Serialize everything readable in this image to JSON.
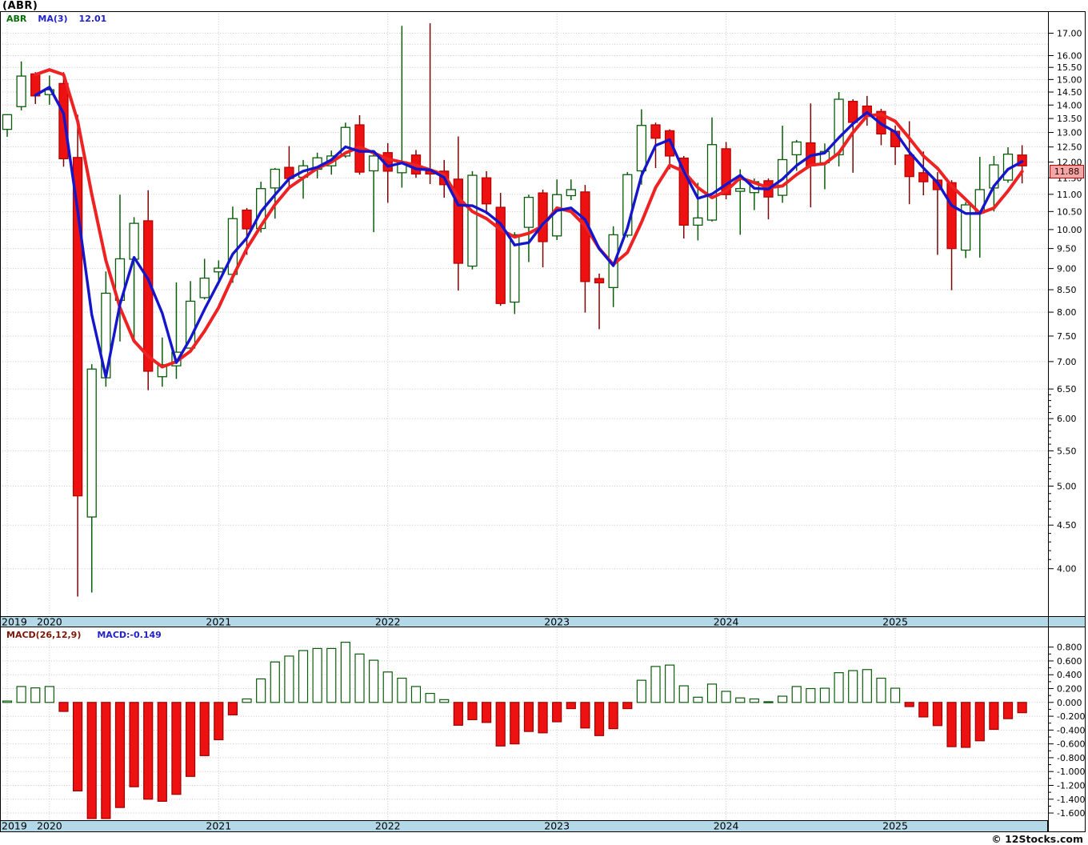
{
  "header": {
    "title": "(ABR)"
  },
  "legend": {
    "symbol": "ABR",
    "ma_label": "MA(3)",
    "ma_value": "12.01"
  },
  "macd_legend": {
    "label": "MACD(26,12,9)",
    "value": "MACD:-0.149"
  },
  "price_tag": {
    "value": "11.88"
  },
  "footer": {
    "copyright": "© 12Stocks.com"
  },
  "colors": {
    "up_body": "#ffffff",
    "up_outline": "#0a5c0a",
    "down_body": "#ee1111",
    "down_outline": "#bb0000",
    "down_wick": "#7a0606",
    "ma_blue": "#1515cc",
    "ma_red": "#ee2222",
    "band": "#b3d9e8",
    "grid": "#c6c6c6",
    "tag_bg": "#f3a6a6",
    "tag_border": "#c00000",
    "macd_pos_fill": "#ffffff",
    "macd_pos_outline": "#0a5c0a",
    "macd_neg_fill": "#ee1111"
  },
  "chart_data": {
    "type": "candlestick_with_macd",
    "title": "(ABR)",
    "interval": "monthly",
    "start_month": "2019-10",
    "last_close": 11.88,
    "ma3_last": 12.01,
    "macd_last": -0.149,
    "price_axis": {
      "scale": "log",
      "min": 4.0,
      "max": 17.5,
      "labels": [
        "17.00",
        "16.00",
        "15.50",
        "15.00",
        "14.50",
        "14.00",
        "13.50",
        "13.00",
        "12.50",
        "12.00",
        "11.50",
        "11.00",
        "10.50",
        "10.00",
        "9.50",
        "9.00",
        "8.50",
        "8.00",
        "7.50",
        "7.00",
        "6.50",
        "6.00",
        "5.50",
        "5.00",
        "4.50",
        "4.00"
      ]
    },
    "macd_axis": {
      "min": -1.7,
      "max": 0.9,
      "labels": [
        "0.800",
        "0.600",
        "0.400",
        "0.200",
        "0.000",
        "-0.200",
        "-0.400",
        "-0.600",
        "-0.800",
        "-1.000",
        "-1.200",
        "-1.400",
        "-1.600"
      ]
    },
    "x_axis": {
      "years": [
        {
          "label": "2019",
          "month_index": 0
        },
        {
          "label": "2020",
          "month_index": 3
        },
        {
          "label": "2021",
          "month_index": 15
        },
        {
          "label": "2022",
          "month_index": 27
        },
        {
          "label": "2023",
          "month_index": 39
        },
        {
          "label": "2024",
          "month_index": 51
        },
        {
          "label": "2025",
          "month_index": 63
        }
      ]
    },
    "candles": [
      [
        13.11,
        13.64,
        12.85,
        13.64
      ],
      [
        13.94,
        15.75,
        13.8,
        15.14
      ],
      [
        15.23,
        15.3,
        14.04,
        14.35
      ],
      [
        14.4,
        15.16,
        14.01,
        14.59
      ],
      [
        14.84,
        15.3,
        11.85,
        12.11
      ],
      [
        12.15,
        13.64,
        3.71,
        4.87
      ],
      [
        4.6,
        6.95,
        3.75,
        6.86
      ],
      [
        6.7,
        8.93,
        6.54,
        8.42
      ],
      [
        8.26,
        10.99,
        7.39,
        9.24
      ],
      [
        9.23,
        10.34,
        7.36,
        10.17
      ],
      [
        10.24,
        11.12,
        6.48,
        6.82
      ],
      [
        6.72,
        7.47,
        6.54,
        6.94
      ],
      [
        6.92,
        8.67,
        6.68,
        7.18
      ],
      [
        7.26,
        8.7,
        7.24,
        8.24
      ],
      [
        8.32,
        9.24,
        8.28,
        8.77
      ],
      [
        8.92,
        9.2,
        8.66,
        9.01
      ],
      [
        8.86,
        10.64,
        8.66,
        10.3
      ],
      [
        10.54,
        10.6,
        9.34,
        10.02
      ],
      [
        10.03,
        11.38,
        9.92,
        11.17
      ],
      [
        11.19,
        11.81,
        10.3,
        11.77
      ],
      [
        11.83,
        12.53,
        11.15,
        11.48
      ],
      [
        11.52,
        12.07,
        10.87,
        11.88
      ],
      [
        11.77,
        12.31,
        11.48,
        12.14
      ],
      [
        11.88,
        12.38,
        11.6,
        12.2
      ],
      [
        12.2,
        13.35,
        12.14,
        13.18
      ],
      [
        13.27,
        13.62,
        11.6,
        11.68
      ],
      [
        11.72,
        12.25,
        9.93,
        12.2
      ],
      [
        12.31,
        12.63,
        10.75,
        11.71
      ],
      [
        11.66,
        17.34,
        11.2,
        12.01
      ],
      [
        12.23,
        12.4,
        11.5,
        11.62
      ],
      [
        11.72,
        17.46,
        11.31,
        11.62
      ],
      [
        11.71,
        12.07,
        10.9,
        11.29
      ],
      [
        11.46,
        12.86,
        8.48,
        9.13
      ],
      [
        9.06,
        11.71,
        8.98,
        11.58
      ],
      [
        11.5,
        11.71,
        10.42,
        10.72
      ],
      [
        10.62,
        11.04,
        8.14,
        8.19
      ],
      [
        8.22,
        9.93,
        7.96,
        9.86
      ],
      [
        10.06,
        10.99,
        9.16,
        10.91
      ],
      [
        11.04,
        11.14,
        9.03,
        9.68
      ],
      [
        9.83,
        11.45,
        9.72,
        10.99
      ],
      [
        10.96,
        11.45,
        10.83,
        11.14
      ],
      [
        11.07,
        11.28,
        7.99,
        8.69
      ],
      [
        8.76,
        8.88,
        7.64,
        8.66
      ],
      [
        8.55,
        10.09,
        8.11,
        9.86
      ],
      [
        9.85,
        11.68,
        9.79,
        11.6
      ],
      [
        11.72,
        13.84,
        11.29,
        13.25
      ],
      [
        13.27,
        13.35,
        11.81,
        12.8
      ],
      [
        13.06,
        13.11,
        11.77,
        12.2
      ],
      [
        12.13,
        12.2,
        9.76,
        10.12
      ],
      [
        10.12,
        11.35,
        9.71,
        10.32
      ],
      [
        10.26,
        13.54,
        10.22,
        12.58
      ],
      [
        12.44,
        12.67,
        10.85,
        10.99
      ],
      [
        11.09,
        11.77,
        9.86,
        11.17
      ],
      [
        11.05,
        11.48,
        10.54,
        11.38
      ],
      [
        11.41,
        11.48,
        10.28,
        10.92
      ],
      [
        10.97,
        13.24,
        10.75,
        12.08
      ],
      [
        12.24,
        12.74,
        11.72,
        12.67
      ],
      [
        12.64,
        14.06,
        10.62,
        11.88
      ],
      [
        11.98,
        12.62,
        11.15,
        12.35
      ],
      [
        12.24,
        14.5,
        11.86,
        14.22
      ],
      [
        14.14,
        14.22,
        11.66,
        13.36
      ],
      [
        13.96,
        14.35,
        13.24,
        13.59
      ],
      [
        13.76,
        13.86,
        12.56,
        12.95
      ],
      [
        13.04,
        13.25,
        11.91,
        12.51
      ],
      [
        12.23,
        13.4,
        10.71,
        11.54
      ],
      [
        11.66,
        12.35,
        10.97,
        11.38
      ],
      [
        11.43,
        11.68,
        9.34,
        11.14
      ],
      [
        11.35,
        11.43,
        8.49,
        9.5
      ],
      [
        9.46,
        10.77,
        9.26,
        10.69
      ],
      [
        10.46,
        12.17,
        9.27,
        11.14
      ],
      [
        11.19,
        12.2,
        10.5,
        11.91
      ],
      [
        11.43,
        12.49,
        11.35,
        12.26
      ],
      [
        12.23,
        12.56,
        11.33,
        11.88
      ]
    ],
    "ma_blue": {
      "period": 3,
      "source": "close"
    },
    "ma_red": {
      "values": [
        null,
        null,
        15.2,
        15.4,
        15.2,
        13.4,
        11.0,
        9.2,
        8.1,
        7.4,
        7.1,
        6.9,
        7.0,
        7.2,
        7.6,
        8.1,
        8.8,
        9.5,
        10.1,
        10.7,
        11.2,
        11.5,
        11.8,
        12.0,
        12.3,
        12.5,
        12.3,
        12.1,
        12.0,
        11.9,
        11.75,
        11.6,
        10.9,
        10.5,
        10.3,
        10.0,
        9.8,
        9.9,
        10.1,
        10.6,
        10.5,
        10.1,
        9.5,
        9.1,
        9.4,
        10.2,
        11.2,
        11.9,
        11.7,
        11.2,
        10.9,
        11.1,
        11.5,
        11.35,
        11.2,
        11.25,
        11.6,
        11.9,
        11.95,
        12.3,
        13.0,
        13.6,
        13.65,
        13.4,
        12.8,
        12.2,
        11.8,
        11.25,
        10.85,
        10.45,
        10.6,
        11.1,
        11.7
      ]
    },
    "macd": {
      "values": [
        0.02,
        0.23,
        0.21,
        0.23,
        -0.13,
        -1.28,
        -1.68,
        -1.68,
        -1.52,
        -1.22,
        -1.4,
        -1.43,
        -1.33,
        -1.07,
        -0.77,
        -0.54,
        -0.18,
        0.05,
        0.34,
        0.585,
        0.67,
        0.75,
        0.78,
        0.78,
        0.87,
        0.7,
        0.61,
        0.44,
        0.35,
        0.23,
        0.13,
        0.04,
        -0.33,
        -0.25,
        -0.29,
        -0.63,
        -0.6,
        -0.42,
        -0.44,
        -0.28,
        -0.09,
        -0.37,
        -0.48,
        -0.38,
        -0.09,
        0.32,
        0.52,
        0.54,
        0.24,
        0.075,
        0.265,
        0.16,
        0.065,
        0.05,
        0.01,
        0.09,
        0.23,
        0.2,
        0.205,
        0.43,
        0.46,
        0.475,
        0.35,
        0.205,
        -0.06,
        -0.21,
        -0.335,
        -0.64,
        -0.65,
        -0.555,
        -0.39,
        -0.235,
        -0.149
      ]
    }
  }
}
